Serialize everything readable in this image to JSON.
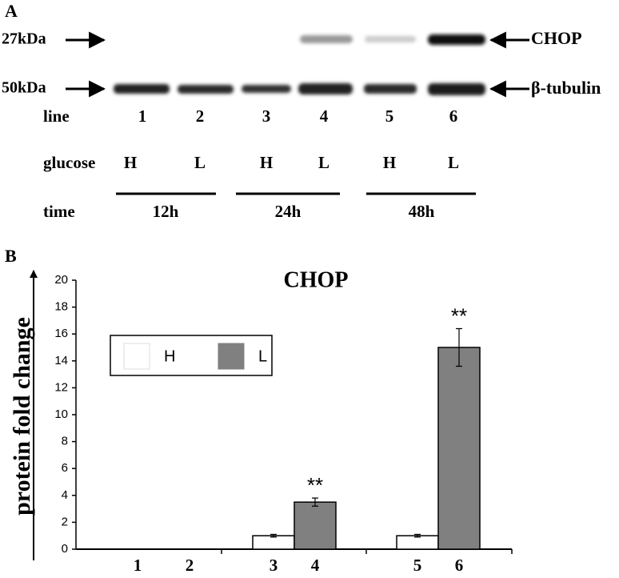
{
  "panel_a": {
    "label": "A",
    "markers": [
      "27kDa",
      "50kDa"
    ],
    "proteins": [
      "CHOP",
      "β-tubulin"
    ],
    "line": {
      "label": "line",
      "values": [
        "1",
        "2",
        "3",
        "4",
        "5",
        "6"
      ]
    },
    "glucose": {
      "label": "glucose",
      "values": [
        "H",
        "L",
        "H",
        "L",
        "H",
        "L"
      ]
    },
    "time": {
      "label": "time",
      "values": [
        "12h",
        "24h",
        "48h"
      ]
    }
  },
  "chart_data": {
    "type": "bar",
    "panel_label": "B",
    "title": "CHOP",
    "y_label": "protein fold change",
    "categories": [
      "1",
      "2",
      "3",
      "4",
      "5",
      "6"
    ],
    "series": [
      {
        "name": "H",
        "color": "#ffffff",
        "values": [
          null,
          null,
          1,
          null,
          1,
          null
        ],
        "errors": [
          null,
          null,
          0.1,
          null,
          0.1,
          null
        ]
      },
      {
        "name": "L",
        "color": "#808080",
        "values": [
          null,
          null,
          null,
          3.5,
          null,
          15
        ],
        "errors": [
          null,
          null,
          null,
          0.3,
          null,
          1.4
        ]
      }
    ],
    "annotations": [
      {
        "text": "**",
        "category": "4"
      },
      {
        "text": "**",
        "category": "6"
      }
    ],
    "ylim": [
      0,
      20
    ],
    "yticks": [
      0,
      2,
      4,
      6,
      8,
      10,
      12,
      14,
      16,
      18,
      20
    ],
    "legend": "upper left"
  }
}
